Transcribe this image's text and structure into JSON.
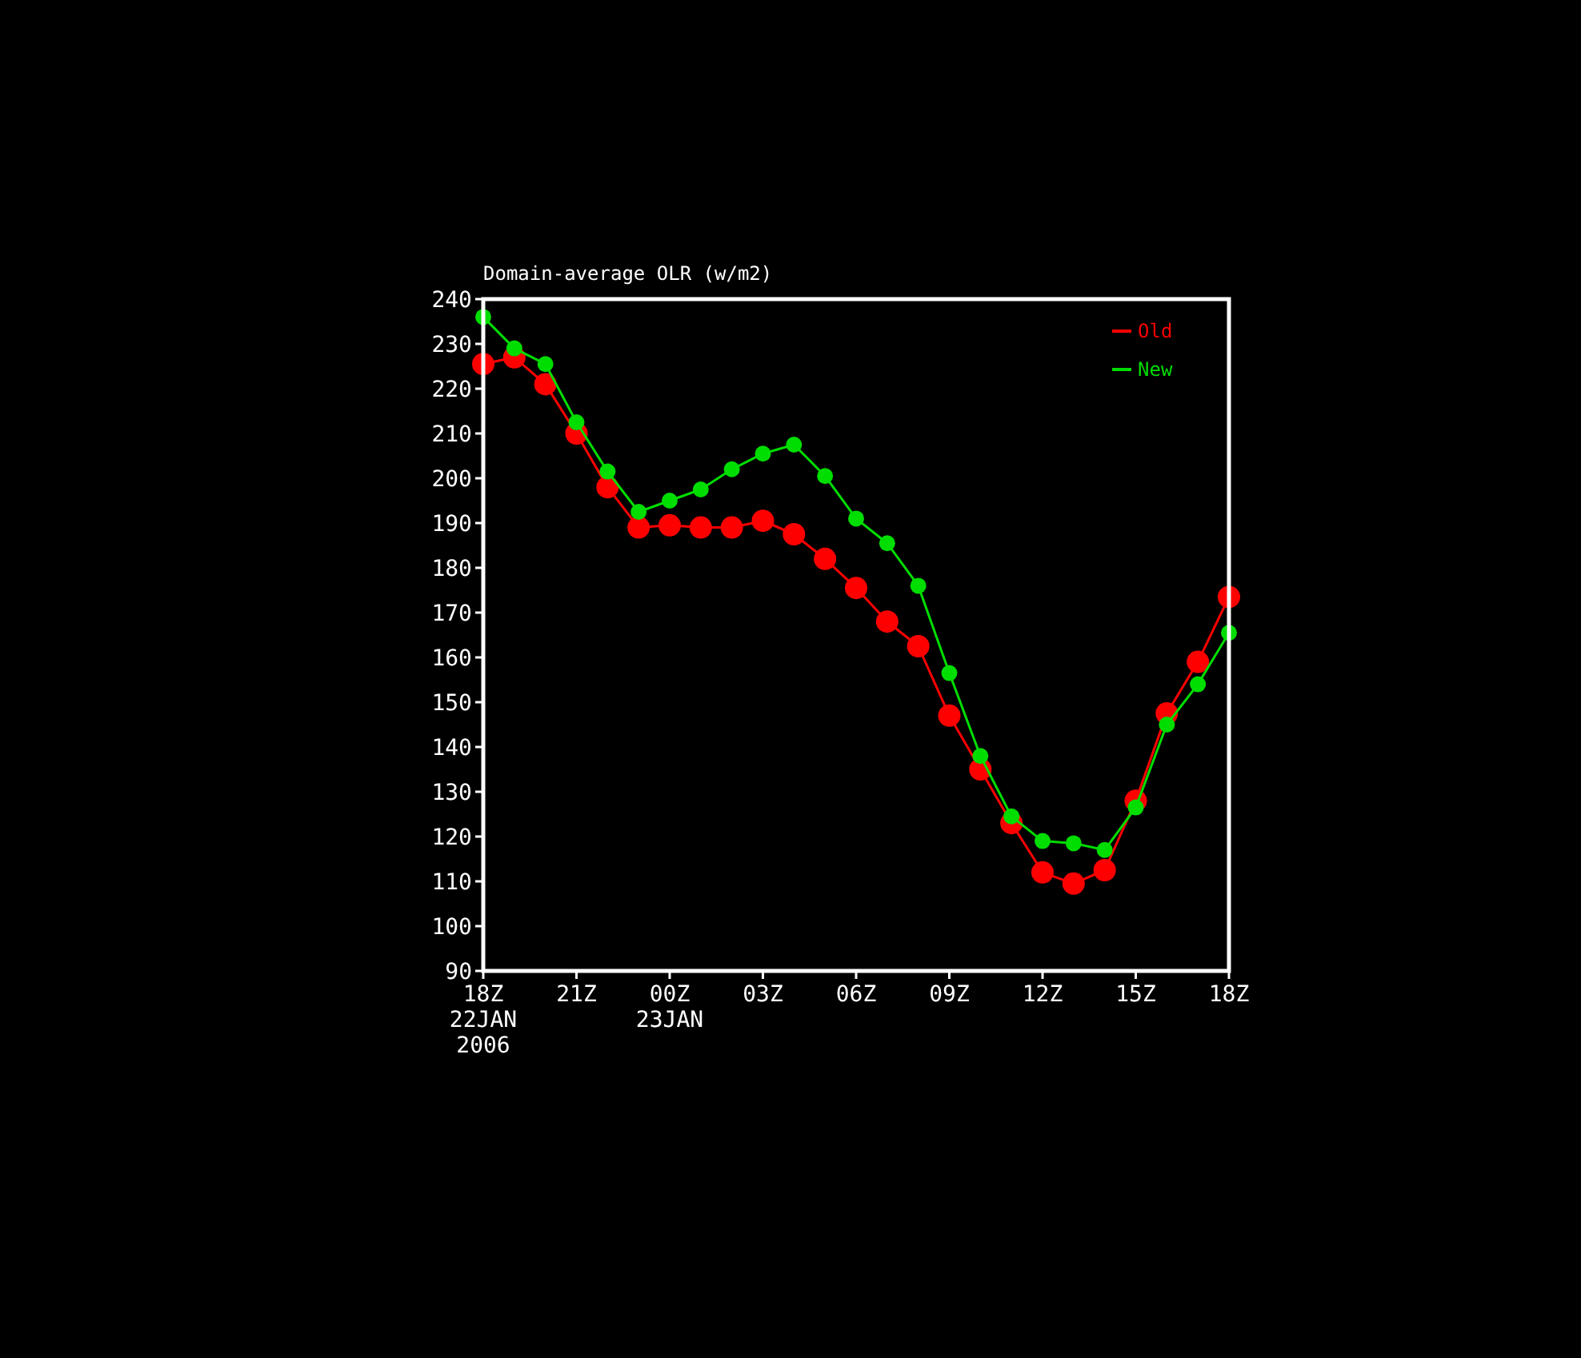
{
  "chart_data": {
    "type": "line",
    "title": "Domain-average OLR (w/m2)",
    "x": [
      "2006-01-22T18:00",
      "2006-01-22T19:00",
      "2006-01-22T20:00",
      "2006-01-22T21:00",
      "2006-01-22T22:00",
      "2006-01-22T23:00",
      "2006-01-23T00:00",
      "2006-01-23T01:00",
      "2006-01-23T02:00",
      "2006-01-23T03:00",
      "2006-01-23T04:00",
      "2006-01-23T05:00",
      "2006-01-23T06:00",
      "2006-01-23T07:00",
      "2006-01-23T08:00",
      "2006-01-23T09:00",
      "2006-01-23T10:00",
      "2006-01-23T11:00",
      "2006-01-23T12:00",
      "2006-01-23T13:00",
      "2006-01-23T14:00",
      "2006-01-23T15:00",
      "2006-01-23T16:00",
      "2006-01-23T17:00",
      "2006-01-23T18:00"
    ],
    "series": [
      {
        "name": "Old",
        "color": "#ff0000",
        "values": [
          225.5,
          227,
          221,
          210,
          198,
          189,
          189.5,
          189,
          189,
          190.5,
          187.5,
          182,
          175.5,
          168,
          162.5,
          147,
          135,
          123,
          112,
          109.5,
          112.5,
          128,
          147.5,
          159,
          173.5
        ]
      },
      {
        "name": "New",
        "color": "#00dd00",
        "values": [
          236,
          229,
          225.5,
          212.5,
          201.5,
          192.5,
          195,
          197.5,
          202,
          205.5,
          207.5,
          200.5,
          191,
          185.5,
          176,
          156.5,
          138,
          124.5,
          119,
          118.5,
          117,
          126.5,
          145,
          154,
          165.5
        ]
      }
    ],
    "xlim": [
      "2006-01-22T18:00",
      "2006-01-23T18:00"
    ],
    "xticks": [
      {
        "value": "2006-01-22T18:00",
        "label": "18Z\n22JAN\n2006"
      },
      {
        "value": "2006-01-22T21:00",
        "label": "21Z"
      },
      {
        "value": "2006-01-23T00:00",
        "label": "00Z\n23JAN"
      },
      {
        "value": "2006-01-23T03:00",
        "label": "03Z"
      },
      {
        "value": "2006-01-23T06:00",
        "label": "06Z"
      },
      {
        "value": "2006-01-23T09:00",
        "label": "09Z"
      },
      {
        "value": "2006-01-23T12:00",
        "label": "12Z"
      },
      {
        "value": "2006-01-23T15:00",
        "label": "15Z"
      },
      {
        "value": "2006-01-23T18:00",
        "label": "18Z"
      }
    ],
    "ylim": [
      90,
      240
    ],
    "yticks": [
      90,
      100,
      110,
      120,
      130,
      140,
      150,
      160,
      170,
      180,
      190,
      200,
      210,
      220,
      230,
      240
    ],
    "grid": false,
    "legend": "top right",
    "marker": "circle",
    "line_style": "solid"
  }
}
